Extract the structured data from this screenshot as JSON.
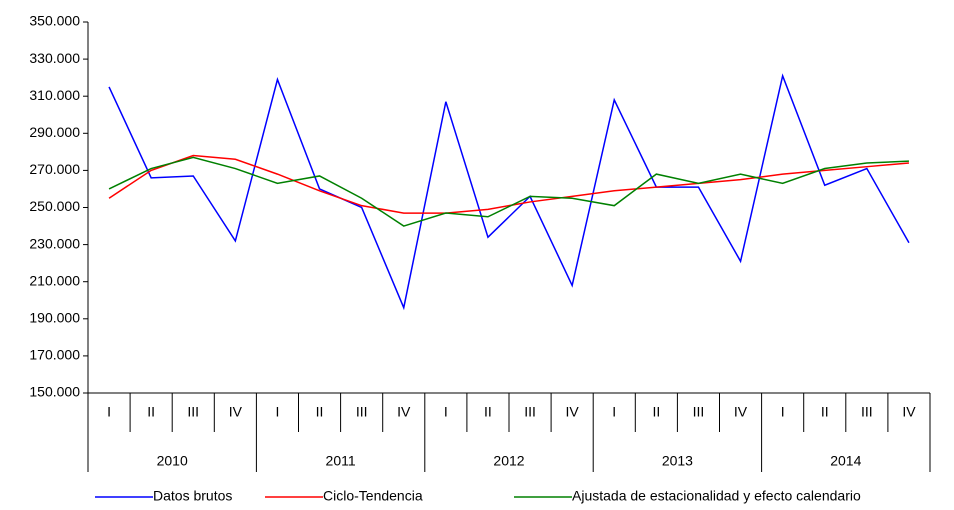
{
  "chart_data": {
    "type": "line",
    "categories": [
      "I",
      "II",
      "III",
      "IV",
      "I",
      "II",
      "III",
      "IV",
      "I",
      "II",
      "III",
      "IV",
      "I",
      "II",
      "III",
      "IV",
      "I",
      "II",
      "III",
      "IV"
    ],
    "category_groups": [
      "2010",
      "2011",
      "2012",
      "2013",
      "2014"
    ],
    "series": [
      {
        "name": "Datos brutos",
        "color": "#0000ff",
        "values": [
          315000,
          266000,
          267000,
          232000,
          319000,
          260000,
          250000,
          196000,
          307000,
          234000,
          256000,
          208000,
          308000,
          261000,
          261000,
          221000,
          321000,
          262000,
          271000,
          231000
        ]
      },
      {
        "name": "Ciclo-Tendencia",
        "color": "#ff0000",
        "values": [
          255000,
          270000,
          278000,
          276000,
          268000,
          259000,
          251000,
          247000,
          247000,
          249000,
          253000,
          256000,
          259000,
          261000,
          263000,
          265000,
          268000,
          270000,
          272000,
          274000
        ]
      },
      {
        "name": "Ajustada de estacionalidad y efecto calendario",
        "color": "#008000",
        "values": [
          260000,
          271000,
          277000,
          271000,
          263000,
          267000,
          255000,
          240000,
          247000,
          245000,
          256000,
          255000,
          251000,
          268000,
          263000,
          268000,
          263000,
          271000,
          274000,
          275000
        ]
      }
    ],
    "ylim": [
      150000,
      350000
    ],
    "yticks": [
      {
        "value": 150000,
        "label": "150.000"
      },
      {
        "value": 170000,
        "label": "170.000"
      },
      {
        "value": 190000,
        "label": "190.000"
      },
      {
        "value": 210000,
        "label": "210.000"
      },
      {
        "value": 230000,
        "label": "230.000"
      },
      {
        "value": 250000,
        "label": "250.000"
      },
      {
        "value": 270000,
        "label": "270.000"
      },
      {
        "value": 290000,
        "label": "290.000"
      },
      {
        "value": 310000,
        "label": "310.000"
      },
      {
        "value": 330000,
        "label": "330.000"
      },
      {
        "value": 350000,
        "label": "350.000"
      }
    ],
    "legend": "bottom"
  }
}
